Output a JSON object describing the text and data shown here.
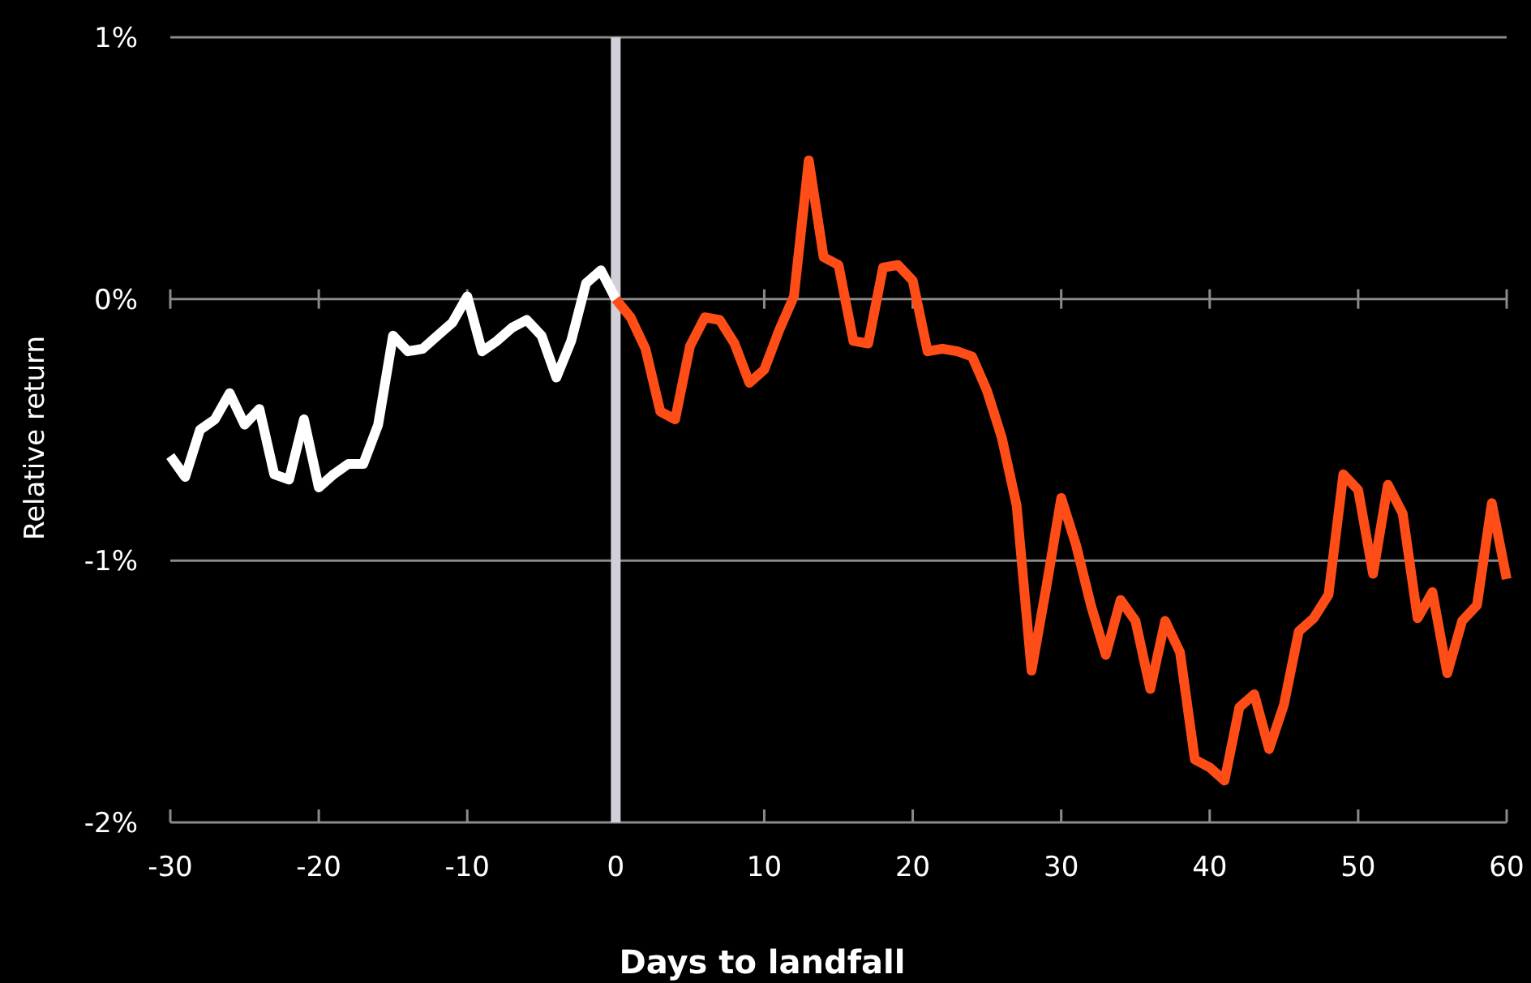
{
  "chart_data": {
    "type": "line",
    "xlabel": "Days to landfall",
    "ylabel": "Relative return",
    "xlim": [
      -30,
      60
    ],
    "xticks": [
      -30,
      -20,
      -10,
      0,
      10,
      20,
      30,
      40,
      50,
      60
    ],
    "ylim": [
      -2,
      1
    ],
    "yticks": [
      {
        "value": 1,
        "label": "1%"
      },
      {
        "value": 0,
        "label": "0%"
      },
      {
        "value": -1,
        "label": "-1%"
      },
      {
        "value": -2,
        "label": "-2%"
      }
    ],
    "grid": "y",
    "line_style": "solid",
    "marker": "none",
    "ref_lines": [
      {
        "axis": "x",
        "value": 0,
        "color": "#d0d0d8"
      }
    ],
    "series": [
      {
        "color": "#ffffff",
        "x": [
          -30,
          -29,
          -28,
          -27,
          -26,
          -25,
          -24,
          -23,
          -22,
          -21,
          -20,
          -19,
          -18,
          -17,
          -16,
          -15,
          -14,
          -13,
          -12,
          -11,
          -10,
          -9,
          -8,
          -7,
          -6,
          -5,
          -4,
          -3,
          -2,
          -1,
          0
        ],
        "values": [
          -0.6,
          -0.68,
          -0.5,
          -0.46,
          -0.36,
          -0.48,
          -0.42,
          -0.67,
          -0.69,
          -0.46,
          -0.72,
          -0.67,
          -0.63,
          -0.63,
          -0.48,
          -0.14,
          -0.2,
          -0.19,
          -0.14,
          -0.09,
          0.01,
          -0.2,
          -0.16,
          -0.11,
          -0.08,
          -0.14,
          -0.3,
          -0.16,
          0.06,
          0.11,
          0
        ]
      },
      {
        "color": "#ff4d17",
        "x": [
          0,
          1,
          2,
          3,
          4,
          5,
          6,
          7,
          8,
          9,
          10,
          11,
          12,
          13,
          14,
          15,
          16,
          17,
          18,
          19,
          20,
          21,
          22,
          23,
          24,
          25,
          26,
          27,
          28,
          29,
          30,
          31,
          32,
          33,
          34,
          35,
          36,
          37,
          38,
          39,
          40,
          41,
          42,
          43,
          44,
          45,
          46,
          47,
          48,
          49,
          50,
          51,
          52,
          53,
          54,
          55,
          56,
          57,
          58,
          59,
          60
        ],
        "values": [
          0,
          -0.07,
          -0.19,
          -0.43,
          -0.46,
          -0.18,
          -0.07,
          -0.08,
          -0.17,
          -0.32,
          -0.27,
          -0.12,
          0.01,
          0.53,
          0.16,
          0.13,
          -0.16,
          -0.17,
          0.12,
          0.13,
          0.07,
          -0.2,
          -0.19,
          -0.2,
          -0.22,
          -0.35,
          -0.53,
          -0.79,
          -1.42,
          -1.1,
          -0.76,
          -0.94,
          -1.17,
          -1.36,
          -1.15,
          -1.23,
          -1.49,
          -1.23,
          -1.35,
          -1.76,
          -1.79,
          -1.84,
          -1.56,
          -1.51,
          -1.72,
          -1.55,
          -1.27,
          -1.22,
          -1.13,
          -0.67,
          -0.73,
          -1.05,
          -0.71,
          -0.82,
          -1.22,
          -1.12,
          -1.43,
          -1.23,
          -1.17,
          -0.78,
          -1.07
        ]
      }
    ]
  }
}
